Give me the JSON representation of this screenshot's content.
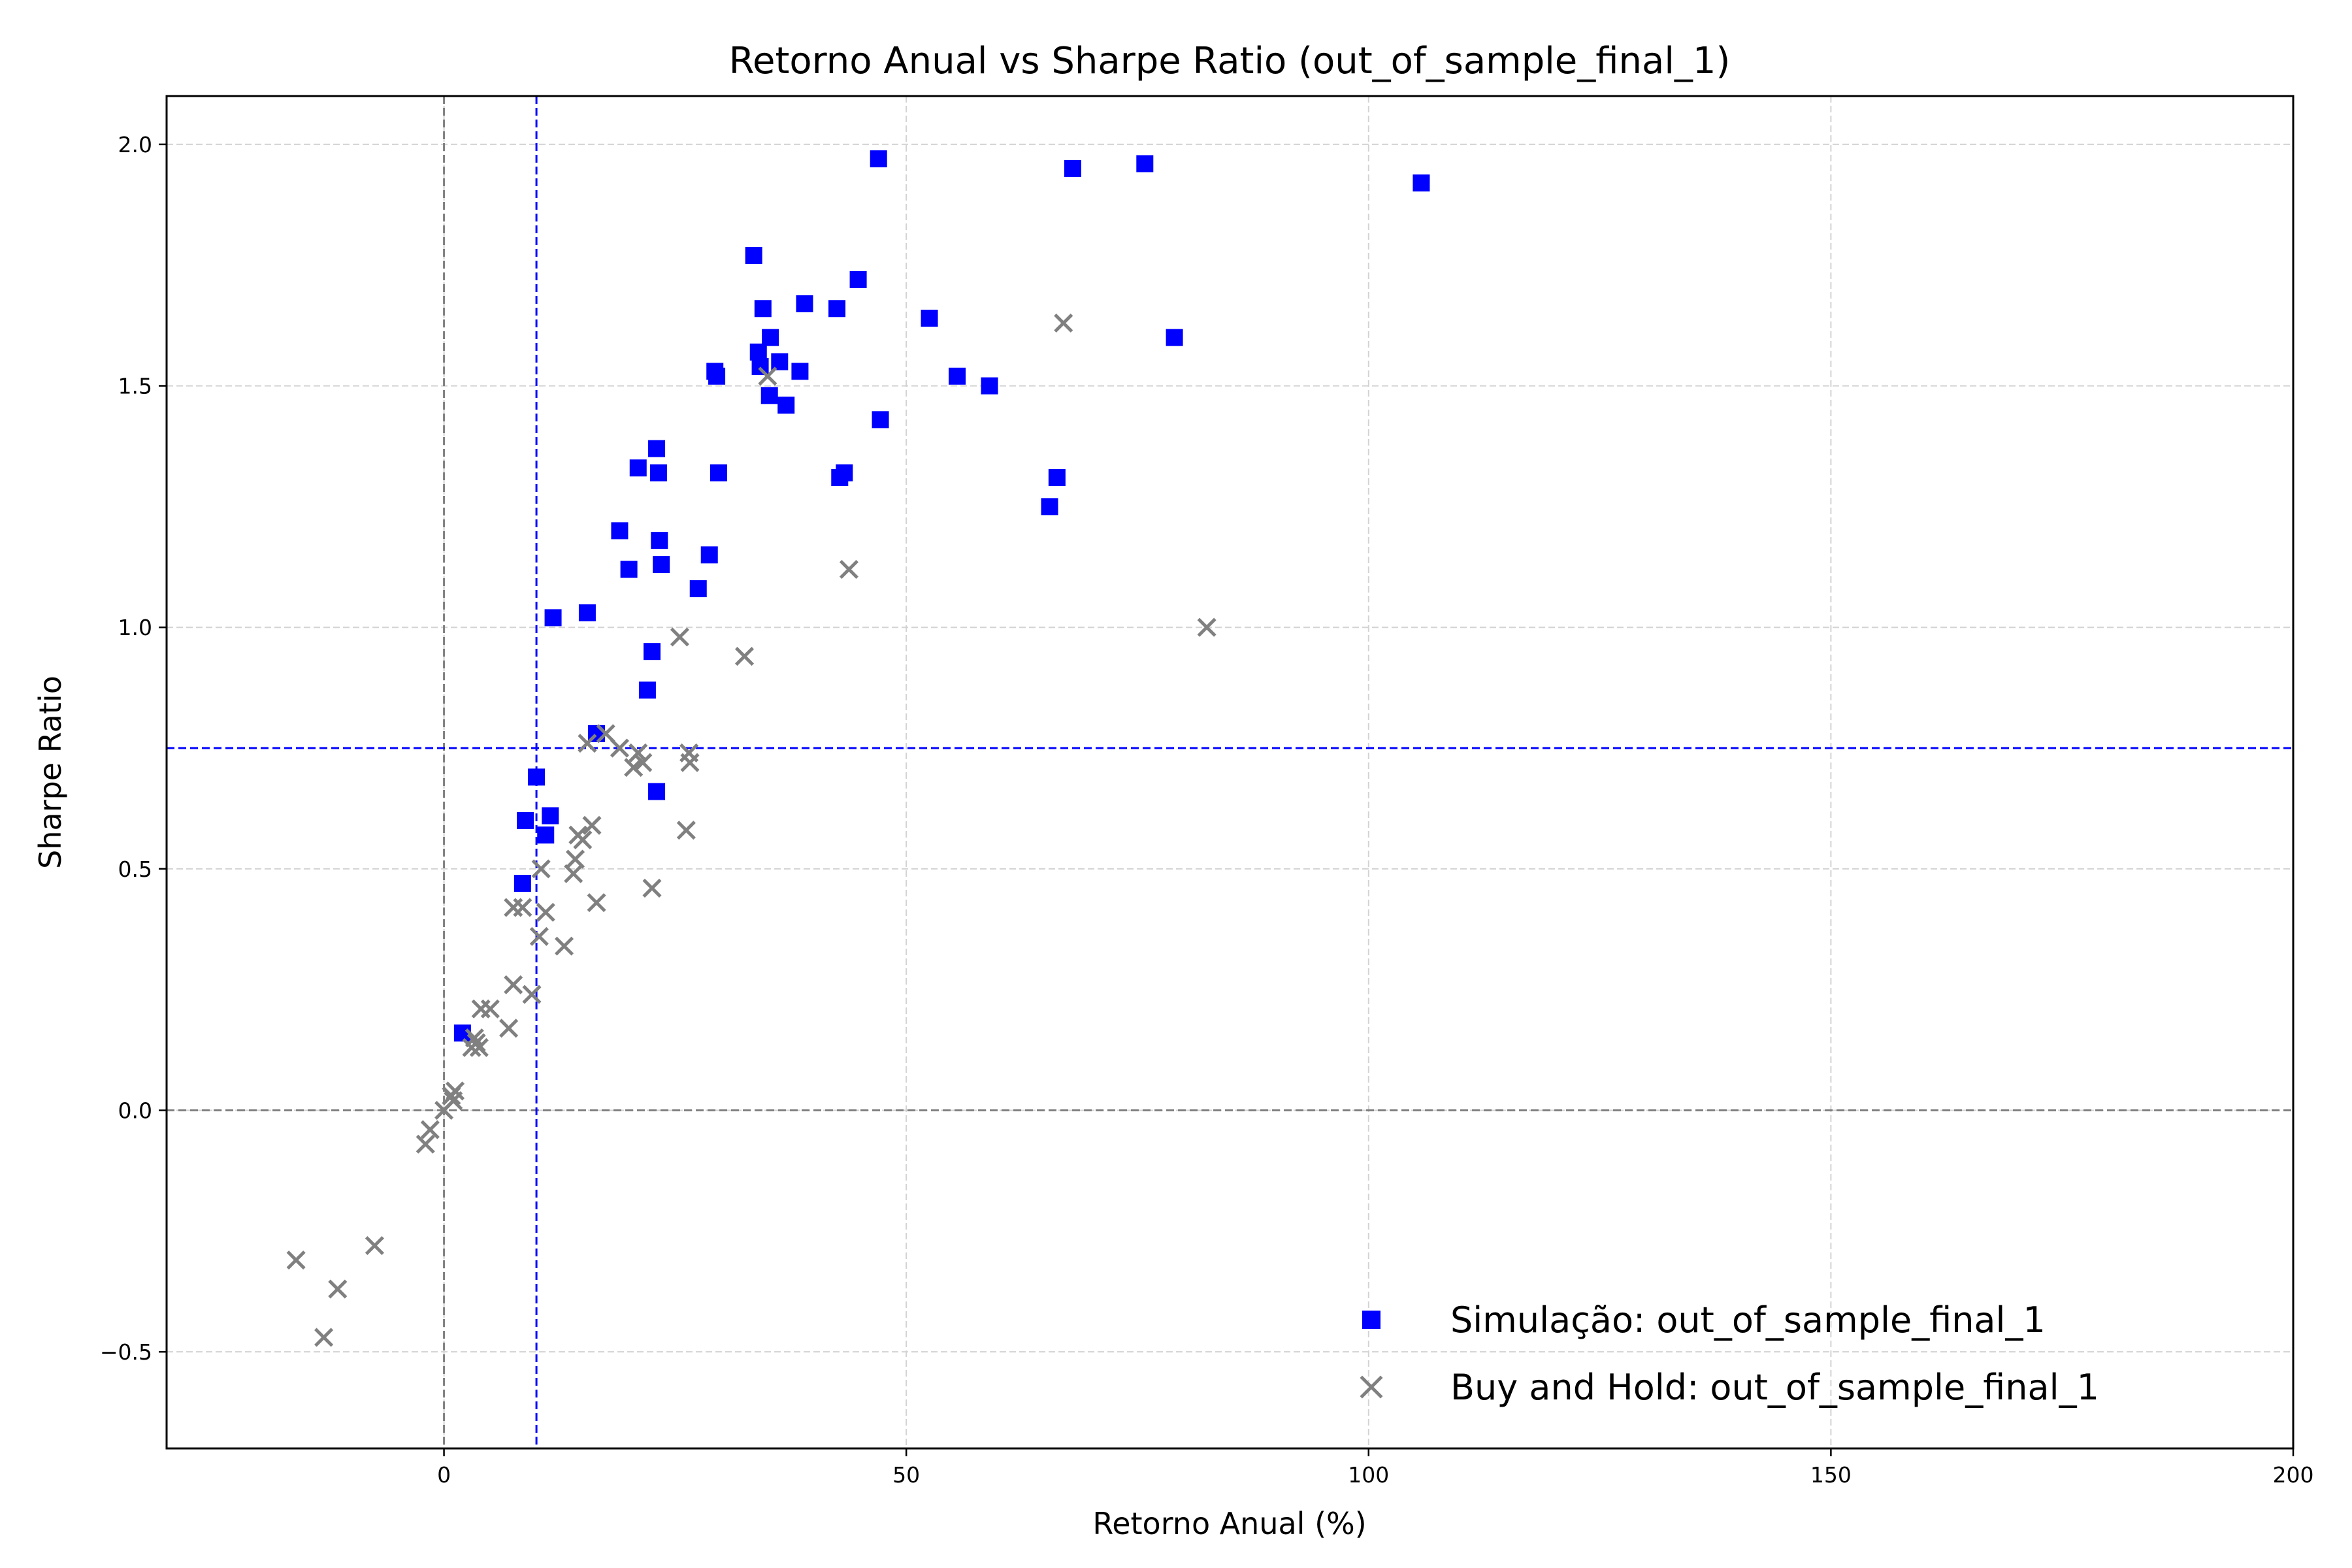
{
  "chart_data": {
    "type": "scatter",
    "title": "Retorno Anual vs Sharpe Ratio (out_of_sample_final_1)",
    "xlabel": "Retorno Anual (%)",
    "ylabel": "Sharpe Ratio",
    "xlim": [
      -30,
      200
    ],
    "ylim": [
      -0.7,
      2.1
    ],
    "xticks": [
      0,
      50,
      100,
      150,
      200
    ],
    "yticks": [
      -0.5,
      0.0,
      0.5,
      1.0,
      1.5,
      2.0
    ],
    "xtick_labels": [
      "0",
      "50",
      "100",
      "150",
      "200"
    ],
    "ytick_labels": [
      "−0.5",
      "0.0",
      "0.5",
      "1.0",
      "1.5",
      "2.0"
    ],
    "grid": true,
    "legend_position": "bottom-right",
    "reference_lines": [
      {
        "orientation": "vertical",
        "value": 0,
        "color": "#808080",
        "style": "dashed"
      },
      {
        "orientation": "horizontal",
        "value": 0,
        "color": "#808080",
        "style": "dashed"
      },
      {
        "orientation": "vertical",
        "value": 10,
        "color": "#0000ff",
        "style": "dashed"
      },
      {
        "orientation": "horizontal",
        "value": 0.75,
        "color": "#0000ff",
        "style": "dashed"
      }
    ],
    "series": [
      {
        "name": "Simulação: out_of_sample_final_1",
        "marker": "square",
        "color": "#0000ff",
        "points": [
          [
            2,
            0.16
          ],
          [
            8.5,
            0.47
          ],
          [
            8.8,
            0.6
          ],
          [
            10,
            0.69
          ],
          [
            11,
            0.57
          ],
          [
            11.5,
            0.61
          ],
          [
            11.8,
            1.02
          ],
          [
            15.5,
            1.03
          ],
          [
            16.5,
            0.78
          ],
          [
            19,
            1.2
          ],
          [
            20,
            1.12
          ],
          [
            21,
            1.33
          ],
          [
            22,
            0.87
          ],
          [
            22.5,
            0.95
          ],
          [
            23,
            1.37
          ],
          [
            23.2,
            1.32
          ],
          [
            23.3,
            1.18
          ],
          [
            23,
            0.66
          ],
          [
            23.5,
            1.13
          ],
          [
            27.5,
            1.08
          ],
          [
            28.7,
            1.15
          ],
          [
            29.3,
            1.53
          ],
          [
            29.5,
            1.52
          ],
          [
            29.7,
            1.32
          ],
          [
            33.5,
            1.77
          ],
          [
            34,
            1.57
          ],
          [
            34.2,
            1.54
          ],
          [
            34.5,
            1.66
          ],
          [
            35.2,
            1.48
          ],
          [
            35.3,
            1.6
          ],
          [
            36.3,
            1.55
          ],
          [
            37,
            1.46
          ],
          [
            38.5,
            1.53
          ],
          [
            39,
            1.67
          ],
          [
            42.5,
            1.66
          ],
          [
            42.8,
            1.31
          ],
          [
            43.3,
            1.32
          ],
          [
            44.8,
            1.72
          ],
          [
            47,
            1.97
          ],
          [
            47.2,
            1.43
          ],
          [
            52.5,
            1.64
          ],
          [
            55.5,
            1.52
          ],
          [
            59,
            1.5
          ],
          [
            65.5,
            1.25
          ],
          [
            66.3,
            1.31
          ],
          [
            68,
            1.95
          ],
          [
            75.8,
            1.96
          ],
          [
            79,
            1.6
          ],
          [
            105.7,
            1.92
          ]
        ]
      },
      {
        "name": "Buy and Hold: out_of_sample_final_1",
        "marker": "x",
        "color": "#808080",
        "points": [
          [
            -16,
            -0.31
          ],
          [
            -13,
            -0.47
          ],
          [
            -11.5,
            -0.37
          ],
          [
            -7.5,
            -0.28
          ],
          [
            -2,
            -0.07
          ],
          [
            -1.5,
            -0.04
          ],
          [
            0,
            0.0
          ],
          [
            0.8,
            0.03
          ],
          [
            1,
            0.02
          ],
          [
            1.2,
            0.04
          ],
          [
            3,
            0.13
          ],
          [
            3.3,
            0.15
          ],
          [
            3.5,
            0.14
          ],
          [
            3.8,
            0.13
          ],
          [
            4,
            0.21
          ],
          [
            5,
            0.21
          ],
          [
            7,
            0.17
          ],
          [
            7.5,
            0.26
          ],
          [
            7.5,
            0.42
          ],
          [
            8.5,
            0.42
          ],
          [
            9.5,
            0.24
          ],
          [
            10.3,
            0.36
          ],
          [
            10.5,
            0.5
          ],
          [
            11,
            0.41
          ],
          [
            13,
            0.34
          ],
          [
            14,
            0.49
          ],
          [
            14.2,
            0.52
          ],
          [
            14.5,
            0.57
          ],
          [
            15,
            0.56
          ],
          [
            15.5,
            0.76
          ],
          [
            16,
            0.59
          ],
          [
            16.5,
            0.43
          ],
          [
            17.5,
            0.78
          ],
          [
            19,
            0.75
          ],
          [
            20.5,
            0.71
          ],
          [
            21,
            0.74
          ],
          [
            21.5,
            0.72
          ],
          [
            22.5,
            0.46
          ],
          [
            25.5,
            0.98
          ],
          [
            26.2,
            0.58
          ],
          [
            26.5,
            0.74
          ],
          [
            26.6,
            0.72
          ],
          [
            32.5,
            0.94
          ],
          [
            35,
            1.52
          ],
          [
            43.8,
            1.12
          ],
          [
            67,
            1.63
          ],
          [
            82.5,
            1.0
          ]
        ]
      }
    ]
  }
}
